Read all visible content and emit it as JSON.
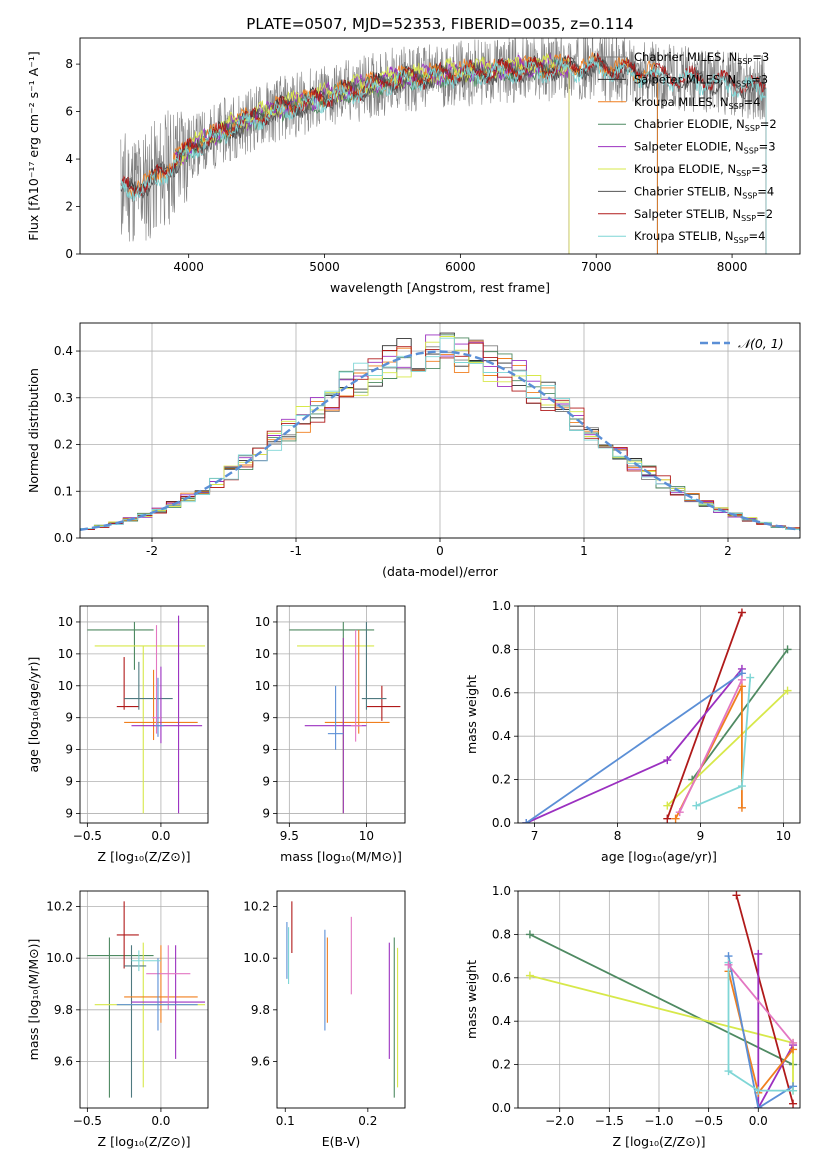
{
  "figure": {
    "title": "PLATE=0507, MJD=52353, FIBERID=0035, z=0.114"
  },
  "chart_data": [
    {
      "id": "spectrum",
      "type": "line",
      "title": "PLATE=0507, MJD=52353, FIBERID=0035, z=0.114",
      "xlabel": "wavelength [Angstrom, rest frame]",
      "ylabel": "Flux [fλ10⁻¹⁷ erg cm⁻² s⁻¹ A⁻¹]",
      "xlim": [
        3200,
        8500
      ],
      "ylim": [
        0,
        9.1
      ],
      "xticks": [
        4000,
        5000,
        6000,
        7000,
        8000
      ],
      "yticks": [
        0,
        2,
        4,
        6,
        8
      ],
      "grid": false,
      "legend": "right",
      "legend_entries": [
        {
          "label": "Chabrier MILES, N",
          "sub": "SSP",
          "suffix": "=3",
          "color": "#808080"
        },
        {
          "label": "Salpeter MILES, N",
          "sub": "SSP",
          "suffix": "=3",
          "color": "#2f2f2f"
        },
        {
          "label": "Kroupa MILES, N",
          "sub": "SSP",
          "suffix": "=4",
          "color": "#f07f1e"
        },
        {
          "label": "Chabrier ELODIE, N",
          "sub": "SSP",
          "suffix": "=2",
          "color": "#4f8a62"
        },
        {
          "label": "Salpeter ELODIE, N",
          "sub": "SSP",
          "suffix": "=3",
          "color": "#9b30c0"
        },
        {
          "label": "Kroupa ELODIE, N",
          "sub": "SSP",
          "suffix": "=3",
          "color": "#d7e84a"
        },
        {
          "label": "Chabrier STELIB, N",
          "sub": "SSP",
          "suffix": "=4",
          "color": "#555555"
        },
        {
          "label": "Salpeter STELIB, N",
          "sub": "SSP",
          "suffix": "=2",
          "color": "#b01a1a"
        },
        {
          "label": "Kroupa STELIB, N",
          "sub": "SSP",
          "suffix": "=4",
          "color": "#7fd6d6"
        }
      ],
      "observed": {
        "color": "#808080",
        "x_range": [
          3500,
          8250
        ],
        "continuum": [
          [
            3500,
            2.8
          ],
          [
            3700,
            2.9
          ],
          [
            4000,
            4.4
          ],
          [
            4300,
            5.3
          ],
          [
            4600,
            6.0
          ],
          [
            5000,
            6.6
          ],
          [
            5500,
            7.3
          ],
          [
            6000,
            7.6
          ],
          [
            6500,
            7.8
          ],
          [
            7000,
            7.9
          ],
          [
            7500,
            7.5
          ],
          [
            8000,
            7.2
          ],
          [
            8250,
            7.0
          ]
        ]
      },
      "series": [
        {
          "name": "Chabrier MILES",
          "color": "#808080",
          "x_range": [
            3550,
            7450
          ],
          "offset": 0.0
        },
        {
          "name": "Salpeter MILES",
          "color": "#2f2f2f",
          "x_range": [
            3550,
            7450
          ],
          "offset": 0.05
        },
        {
          "name": "Kroupa MILES",
          "color": "#f07f1e",
          "x_range": [
            3550,
            7450
          ],
          "offset": 0.1
        },
        {
          "name": "Chabrier ELODIE",
          "color": "#4f8a62",
          "x_range": [
            3900,
            6800
          ],
          "offset": -0.05
        },
        {
          "name": "Salpeter ELODIE",
          "color": "#9b30c0",
          "x_range": [
            3900,
            6800
          ],
          "offset": 0.08
        },
        {
          "name": "Kroupa ELODIE",
          "color": "#d7e84a",
          "x_range": [
            3900,
            6800
          ],
          "offset": 0.15
        },
        {
          "name": "Chabrier STELIB",
          "color": "#555555",
          "x_range": [
            3500,
            8250
          ],
          "offset": -0.08
        },
        {
          "name": "Salpeter STELIB",
          "color": "#b01a1a",
          "x_range": [
            3500,
            8250
          ],
          "offset": 0.02
        },
        {
          "name": "Kroupa STELIB",
          "color": "#7fd6d6",
          "x_range": [
            3500,
            8250
          ],
          "offset": -0.12
        }
      ]
    },
    {
      "id": "residuals",
      "type": "histogram",
      "xlabel": "(data-model)/error",
      "ylabel": "Normed distribution",
      "xlim": [
        -2.5,
        2.5
      ],
      "ylim": [
        0,
        0.46
      ],
      "xticks": [
        -2,
        -1,
        0,
        1,
        2
      ],
      "yticks": [
        0.0,
        0.1,
        0.2,
        0.3,
        0.4
      ],
      "grid": true,
      "legend": "top-right",
      "legend_label": "𝒩(0, 1)",
      "normal_curve": {
        "mu": 0,
        "sigma": 1,
        "color": "#5b8fd6"
      },
      "bin_width": 0.1,
      "series": [
        {
          "name": "Chabrier MILES",
          "color": "#808080",
          "seed": 1
        },
        {
          "name": "Salpeter MILES",
          "color": "#2f2f2f",
          "seed": 2
        },
        {
          "name": "Kroupa MILES",
          "color": "#f07f1e",
          "seed": 3
        },
        {
          "name": "Chabrier ELODIE",
          "color": "#4f8a62",
          "seed": 4
        },
        {
          "name": "Salpeter ELODIE",
          "color": "#9b30c0",
          "seed": 5
        },
        {
          "name": "Kroupa ELODIE",
          "color": "#d7e84a",
          "seed": 6
        },
        {
          "name": "Salpeter STELIB",
          "color": "#b01a1a",
          "seed": 7
        },
        {
          "name": "Kroupa STELIB",
          "color": "#7fd6d6",
          "seed": 8
        }
      ]
    },
    {
      "id": "z-age",
      "type": "errorbar",
      "xlabel": "Z [log₁₀(Z/Z⊙)]",
      "ylabel": "age  [log₁₀(age/yr)]",
      "xlim": [
        -0.55,
        0.32
      ],
      "ylim": [
        8.74,
        10.1
      ],
      "xticks": [
        -0.5,
        0.0
      ],
      "xtick_labels": [
        "−0.5",
        "0.0"
      ],
      "yticks": [
        8.8,
        9.0,
        9.2,
        9.4,
        9.6,
        9.8,
        10.0
      ],
      "grid": true,
      "points": [
        {
          "x": -0.18,
          "y": 9.95,
          "xmin": -0.5,
          "xmax": -0.05,
          "ymin": 9.7,
          "ymax": 10.0,
          "color": "#4f8a62"
        },
        {
          "x": -0.12,
          "y": 9.85,
          "xmin": -0.45,
          "xmax": 0.3,
          "ymin": 8.8,
          "ymax": 9.85,
          "color": "#d7e84a"
        },
        {
          "x": -0.25,
          "y": 9.47,
          "xmin": -0.3,
          "xmax": -0.15,
          "ymin": 9.45,
          "ymax": 9.78,
          "color": "#b01a1a"
        },
        {
          "x": -0.15,
          "y": 9.52,
          "xmin": -0.25,
          "xmax": 0.08,
          "ymin": 9.45,
          "ymax": 9.75,
          "color": "#4f7a80"
        },
        {
          "x": -0.05,
          "y": 9.37,
          "xmin": -0.25,
          "xmax": 0.25,
          "ymin": 9.26,
          "ymax": 9.7,
          "color": "#f07f1e"
        },
        {
          "x": 0.0,
          "y": 9.35,
          "xmin": -0.2,
          "xmax": 0.28,
          "ymin": 9.24,
          "ymax": 9.72,
          "color": "#9b30c0"
        },
        {
          "x": 0.12,
          "y": 9.35,
          "xmin": 0.12,
          "xmax": 0.12,
          "ymin": 8.8,
          "ymax": 10.04,
          "color": "#9b30c0"
        },
        {
          "x": -0.03,
          "y": 9.4,
          "xmin": -0.06,
          "xmax": 0.0,
          "ymin": 9.3,
          "ymax": 9.98,
          "color": "#e377c2"
        },
        {
          "x": -0.02,
          "y": 9.35,
          "xmin": -0.04,
          "xmax": 0.02,
          "ymin": 9.28,
          "ymax": 9.65,
          "color": "#5b8fd6"
        }
      ]
    },
    {
      "id": "mass-age",
      "type": "errorbar",
      "xlabel": "mass [log₁₀(M/M⊙)]",
      "xlim": [
        9.42,
        10.25
      ],
      "ylim": [
        8.74,
        10.1
      ],
      "xticks": [
        9.5,
        10.0
      ],
      "yticks": [
        8.8,
        9.0,
        9.2,
        9.4,
        9.6,
        9.8,
        10.0
      ],
      "grid": true,
      "points": [
        {
          "x": 9.85,
          "y": 9.95,
          "xmin": 9.5,
          "xmax": 10.05,
          "ymin": 8.8,
          "ymax": 10.0,
          "color": "#4f8a62"
        },
        {
          "x": 9.85,
          "y": 9.85,
          "xmin": 9.55,
          "xmax": 10.05,
          "ymin": 8.8,
          "ymax": 9.9,
          "color": "#d7e84a"
        },
        {
          "x": 10.1,
          "y": 9.47,
          "xmin": 10.0,
          "xmax": 10.22,
          "ymin": 9.38,
          "ymax": 9.6,
          "color": "#b01a1a"
        },
        {
          "x": 10.0,
          "y": 9.52,
          "xmin": 9.97,
          "xmax": 10.13,
          "ymin": 9.45,
          "ymax": 10.0,
          "color": "#4f7a80"
        },
        {
          "x": 9.95,
          "y": 9.37,
          "xmin": 9.73,
          "xmax": 10.15,
          "ymin": 9.3,
          "ymax": 9.95,
          "color": "#f07f1e"
        },
        {
          "x": 9.85,
          "y": 9.35,
          "xmin": 9.6,
          "xmax": 10.0,
          "ymin": 8.8,
          "ymax": 9.9,
          "color": "#9b30c0"
        },
        {
          "x": 9.93,
          "y": 9.35,
          "xmin": 9.9,
          "xmax": 9.97,
          "ymin": 9.25,
          "ymax": 9.95,
          "color": "#e377c2"
        },
        {
          "x": 9.8,
          "y": 9.3,
          "xmin": 9.75,
          "xmax": 9.85,
          "ymin": 9.2,
          "ymax": 9.6,
          "color": "#5b8fd6"
        }
      ]
    },
    {
      "id": "age-weight",
      "type": "line",
      "xlabel": "age  [log₁₀(age/yr)]",
      "ylabel": "mass weight",
      "xlim": [
        6.8,
        10.2
      ],
      "ylim": [
        0,
        1.0
      ],
      "xticks": [
        7,
        8,
        9,
        10
      ],
      "yticks": [
        0.0,
        0.2,
        0.4,
        0.6,
        0.8,
        1.0
      ],
      "grid": true,
      "series": [
        {
          "name": "Chabrier ELODIE",
          "color": "#4f8a62",
          "points": [
            [
              8.9,
              0.2
            ],
            [
              10.05,
              0.8
            ]
          ]
        },
        {
          "name": "Kroupa ELODIE",
          "color": "#d7e84a",
          "points": [
            [
              8.6,
              0.08
            ],
            [
              10.05,
              0.61
            ]
          ]
        },
        {
          "name": "Salpeter STELIB",
          "color": "#b01a1a",
          "points": [
            [
              8.6,
              0.02
            ],
            [
              9.5,
              0.97
            ]
          ]
        },
        {
          "name": "Salpeter ELODIE",
          "color": "#9b30c0",
          "points": [
            [
              6.9,
              0.0
            ],
            [
              8.6,
              0.29
            ],
            [
              9.5,
              0.71
            ]
          ]
        },
        {
          "name": "Kroupa MILES",
          "color": "#f07f1e",
          "points": [
            [
              8.7,
              0.02
            ],
            [
              9.5,
              0.63
            ],
            [
              9.5,
              0.07
            ]
          ]
        },
        {
          "name": "Chabrier MILES",
          "color": "#5b8fd6",
          "points": [
            [
              6.9,
              0.0
            ],
            [
              9.5,
              0.69
            ]
          ]
        },
        {
          "name": "Kroupa STELIB",
          "color": "#7fd6d6",
          "points": [
            [
              8.95,
              0.08
            ],
            [
              9.5,
              0.17
            ],
            [
              9.6,
              0.67
            ]
          ]
        },
        {
          "name": "Chabrier STELIB",
          "color": "#e377c2",
          "points": [
            [
              8.75,
              0.05
            ],
            [
              9.5,
              0.66
            ]
          ]
        }
      ]
    },
    {
      "id": "z-mass",
      "type": "errorbar",
      "xlabel": "Z [log₁₀(Z/Z⊙)]",
      "ylabel": "mass [log₁₀(M/M⊙)]",
      "xlim": [
        -0.55,
        0.32
      ],
      "ylim": [
        9.42,
        10.26
      ],
      "xticks": [
        -0.5,
        0.0
      ],
      "xtick_labels": [
        "−0.5",
        "0.0"
      ],
      "yticks": [
        9.6,
        9.8,
        10.0,
        10.2
      ],
      "grid": true,
      "points": [
        {
          "x": -0.35,
          "y": 10.01,
          "xmin": -0.5,
          "xmax": -0.05,
          "ymin": 9.46,
          "ymax": 10.08,
          "color": "#4f8a62"
        },
        {
          "x": -0.12,
          "y": 9.82,
          "xmin": -0.45,
          "xmax": 0.3,
          "ymin": 9.5,
          "ymax": 10.06,
          "color": "#d7e84a"
        },
        {
          "x": -0.25,
          "y": 10.09,
          "xmin": -0.3,
          "xmax": -0.15,
          "ymin": 9.96,
          "ymax": 10.22,
          "color": "#b01a1a"
        },
        {
          "x": -0.2,
          "y": 9.97,
          "xmin": -0.25,
          "xmax": -0.1,
          "ymin": 9.46,
          "ymax": 10.05,
          "color": "#4f7a80"
        },
        {
          "x": 0.0,
          "y": 9.85,
          "xmin": -0.25,
          "xmax": 0.25,
          "ymin": 9.75,
          "ymax": 10.05,
          "color": "#f07f1e"
        },
        {
          "x": 0.1,
          "y": 9.83,
          "xmin": -0.2,
          "xmax": 0.3,
          "ymin": 9.61,
          "ymax": 10.05,
          "color": "#9b30c0"
        },
        {
          "x": 0.05,
          "y": 9.94,
          "xmin": -0.1,
          "xmax": 0.2,
          "ymin": 9.8,
          "ymax": 10.05,
          "color": "#e377c2"
        },
        {
          "x": -0.02,
          "y": 9.82,
          "xmin": -0.3,
          "xmax": 0.25,
          "ymin": 9.72,
          "ymax": 10.0,
          "color": "#5b8fd6"
        },
        {
          "x": -0.15,
          "y": 9.99,
          "xmin": -0.2,
          "xmax": 0.0,
          "ymin": 9.95,
          "ymax": 10.03,
          "color": "#7fd6d6"
        }
      ]
    },
    {
      "id": "ebv-mass",
      "type": "errorbar",
      "xlabel": "E(B-V)",
      "xlim": [
        0.09,
        0.245
      ],
      "ylim": [
        9.42,
        10.26
      ],
      "xticks": [
        0.1,
        0.2
      ],
      "yticks": [
        9.6,
        9.8,
        10.0,
        10.2
      ],
      "grid": false,
      "points": [
        {
          "x": 0.102,
          "y": 10.0,
          "ymin": 9.92,
          "ymax": 10.14,
          "color": "#5b8fd6"
        },
        {
          "x": 0.104,
          "y": 10.0,
          "ymin": 9.9,
          "ymax": 10.12,
          "color": "#7fd6d6"
        },
        {
          "x": 0.108,
          "y": 10.12,
          "ymin": 10.02,
          "ymax": 10.22,
          "color": "#b01a1a"
        },
        {
          "x": 0.148,
          "y": 9.9,
          "ymin": 9.72,
          "ymax": 10.11,
          "color": "#5b8fd6"
        },
        {
          "x": 0.151,
          "y": 9.92,
          "ymin": 9.75,
          "ymax": 10.08,
          "color": "#f07f1e"
        },
        {
          "x": 0.18,
          "y": 10.0,
          "ymin": 9.86,
          "ymax": 10.16,
          "color": "#e377c2"
        },
        {
          "x": 0.226,
          "y": 9.8,
          "ymin": 9.61,
          "ymax": 10.06,
          "color": "#9b30c0"
        },
        {
          "x": 0.232,
          "y": 9.8,
          "ymin": 9.46,
          "ymax": 10.08,
          "color": "#4f8a62"
        },
        {
          "x": 0.236,
          "y": 9.8,
          "ymin": 9.5,
          "ymax": 10.04,
          "color": "#d7e84a"
        }
      ]
    },
    {
      "id": "z-weight",
      "type": "line",
      "xlabel": "Z [log₁₀(Z/Z⊙)]",
      "ylabel": "mass weight",
      "xlim": [
        -2.42,
        0.42
      ],
      "ylim": [
        0,
        1.0
      ],
      "xticks": [
        -2.0,
        -1.5,
        -1.0,
        -0.5,
        0.0
      ],
      "xtick_labels": [
        "−2.0",
        "−1.5",
        "−1.0",
        "−0.5",
        "0.0"
      ],
      "yticks": [
        0.0,
        0.2,
        0.4,
        0.6,
        0.8,
        1.0
      ],
      "grid": true,
      "series": [
        {
          "name": "Chabrier ELODIE",
          "color": "#4f8a62",
          "points": [
            [
              -2.3,
              0.8
            ],
            [
              0.35,
              0.2
            ]
          ]
        },
        {
          "name": "Kroupa ELODIE",
          "color": "#d7e84a",
          "points": [
            [
              -2.3,
              0.61
            ],
            [
              0.35,
              0.3
            ],
            [
              0.35,
              0.08
            ]
          ]
        },
        {
          "name": "Salpeter STELIB",
          "color": "#b01a1a",
          "points": [
            [
              -0.22,
              0.98
            ],
            [
              0.35,
              0.02
            ]
          ]
        },
        {
          "name": "Salpeter ELODIE",
          "color": "#9b30c0",
          "points": [
            [
              0.0,
              0.71
            ],
            [
              0.0,
              0.0
            ],
            [
              0.35,
              0.29
            ]
          ]
        },
        {
          "name": "Kroupa MILES",
          "color": "#f07f1e",
          "points": [
            [
              -0.3,
              0.63
            ],
            [
              0.0,
              0.07
            ],
            [
              0.35,
              0.27
            ]
          ]
        },
        {
          "name": "Chabrier MILES",
          "color": "#5b8fd6",
          "points": [
            [
              -0.3,
              0.7
            ],
            [
              0.0,
              0.0
            ],
            [
              0.35,
              0.1
            ]
          ]
        },
        {
          "name": "Kroupa STELIB",
          "color": "#7fd6d6",
          "points": [
            [
              -0.3,
              0.67
            ],
            [
              -0.3,
              0.17
            ],
            [
              0.0,
              0.08
            ],
            [
              0.35,
              0.08
            ]
          ]
        },
        {
          "name": "Chabrier STELIB",
          "color": "#e377c2",
          "points": [
            [
              -0.3,
              0.66
            ],
            [
              0.35,
              0.3
            ]
          ]
        }
      ]
    }
  ]
}
